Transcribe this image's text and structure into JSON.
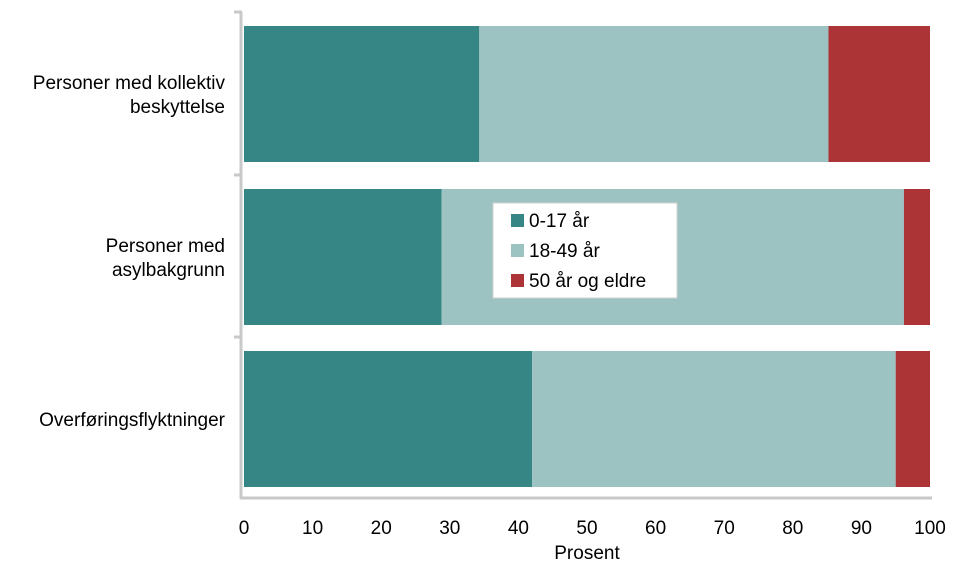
{
  "chart_data": {
    "type": "bar",
    "orientation": "horizontal",
    "stacked": true,
    "categories": [
      "Personer med kollektiv beskyttelse",
      "Personer med asylbakgrunn",
      "Overføringsflyktninger"
    ],
    "category_lines": [
      [
        "Personer med kollektiv",
        "beskyttelse"
      ],
      [
        "Personer med",
        "asylbakgrunn"
      ],
      [
        "Overføringsflyktninger"
      ]
    ],
    "series": [
      {
        "name": "0-17 år",
        "color": "#358685",
        "values": [
          34.3,
          28.8,
          42
        ]
      },
      {
        "name": "18-49 år",
        "color": "#9cc3c2",
        "values": [
          50.9,
          67.4,
          53
        ]
      },
      {
        "name": "50 år og eldre",
        "color": "#ad3436",
        "values": [
          14.8,
          3.8,
          5
        ]
      }
    ],
    "xlabel": "Prosent",
    "ylabel": "",
    "xlim": [
      0,
      100
    ],
    "xticks": [
      "0",
      "10",
      "20",
      "30",
      "40",
      "50",
      "60",
      "70",
      "80",
      "90",
      "100"
    ],
    "grid": false,
    "legend_position": "center"
  }
}
